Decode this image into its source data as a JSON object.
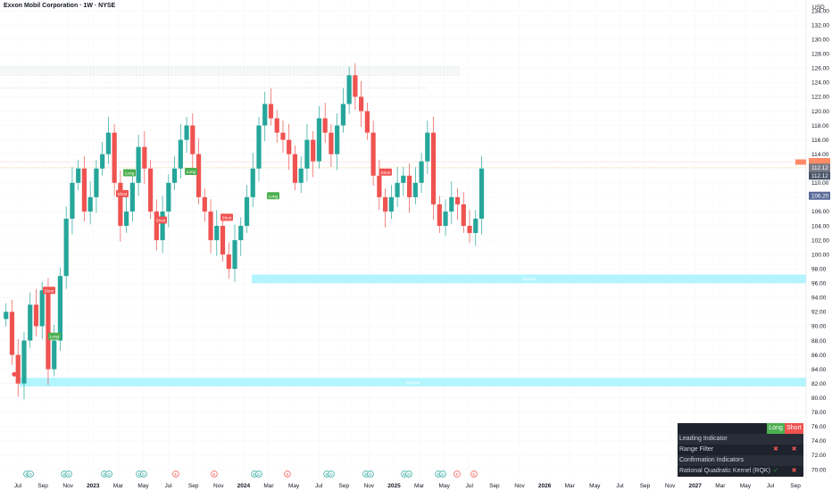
{
  "header": {
    "symbol_title": "Exxon Mobil Corporation · 1W · NYSE",
    "currency": "USD"
  },
  "colors": {
    "up": "#26a69a",
    "down": "#ef5350",
    "long_label": "#4caf50",
    "short_label": "#ef5350",
    "zone": "#b2f5ff",
    "zone_text": "#d5fbff",
    "price_label": "#787b86",
    "price_label_blue": "#5b6b99",
    "orange": "#ff8a65"
  },
  "chart_data": {
    "type": "candlestick",
    "y_axis": {
      "range": [
        69,
        135
      ],
      "ticks": [
        "70.00",
        "72.00",
        "74.00",
        "76.00",
        "78.00",
        "80.00",
        "82.00",
        "84.00",
        "86.00",
        "88.00",
        "90.00",
        "92.00",
        "94.00",
        "96.00",
        "98.00",
        "100.00",
        "102.00",
        "104.00",
        "106.00",
        "108.00",
        "110.00",
        "112.00",
        "114.00",
        "116.00",
        "118.00",
        "120.00",
        "122.00",
        "124.00",
        "126.00",
        "128.00",
        "130.00",
        "132.00",
        "134.00"
      ]
    },
    "x_axis": {
      "labels": [
        "Jul",
        "Sep",
        "Nov",
        "2023",
        "Mar",
        "May",
        "Jul",
        "Sep",
        "Nov",
        "2024",
        "Mar",
        "May",
        "Jul",
        "Sep",
        "Nov",
        "2025",
        "Mar",
        "May",
        "Jul",
        "Sep",
        "Nov",
        "2026",
        "Mar",
        "May",
        "Jul",
        "Sep",
        "Nov",
        "2027",
        "Mar",
        "May",
        "Jul",
        "Sep"
      ],
      "bold": [
        "2023",
        "2024",
        "2025",
        "2026",
        "2027"
      ]
    },
    "approx_close_path": [
      [
        2022.48,
        92
      ],
      [
        2022.52,
        86
      ],
      [
        2022.56,
        82
      ],
      [
        2022.6,
        88
      ],
      [
        2022.64,
        93
      ],
      [
        2022.68,
        90
      ],
      [
        2022.72,
        95
      ],
      [
        2022.76,
        84
      ],
      [
        2022.8,
        88
      ],
      [
        2022.84,
        97
      ],
      [
        2022.88,
        105
      ],
      [
        2022.92,
        110
      ],
      [
        2022.96,
        112
      ],
      [
        2023.0,
        106
      ],
      [
        2023.04,
        108
      ],
      [
        2023.08,
        112
      ],
      [
        2023.12,
        114
      ],
      [
        2023.16,
        117
      ],
      [
        2023.2,
        110
      ],
      [
        2023.24,
        104
      ],
      [
        2023.28,
        106
      ],
      [
        2023.32,
        110
      ],
      [
        2023.36,
        115
      ],
      [
        2023.4,
        112
      ],
      [
        2023.44,
        106
      ],
      [
        2023.48,
        102
      ],
      [
        2023.52,
        106
      ],
      [
        2023.56,
        110
      ],
      [
        2023.6,
        112
      ],
      [
        2023.64,
        116
      ],
      [
        2023.68,
        118
      ],
      [
        2023.72,
        114
      ],
      [
        2023.76,
        108
      ],
      [
        2023.8,
        106
      ],
      [
        2023.84,
        102
      ],
      [
        2023.88,
        104
      ],
      [
        2023.92,
        100
      ],
      [
        2023.96,
        98
      ],
      [
        2024.0,
        102
      ],
      [
        2024.04,
        104
      ],
      [
        2024.08,
        108
      ],
      [
        2024.12,
        112
      ],
      [
        2024.16,
        118
      ],
      [
        2024.2,
        121
      ],
      [
        2024.24,
        119
      ],
      [
        2024.28,
        117
      ],
      [
        2024.32,
        116
      ],
      [
        2024.36,
        114
      ],
      [
        2024.4,
        110
      ],
      [
        2024.44,
        112
      ],
      [
        2024.48,
        116
      ],
      [
        2024.52,
        113
      ],
      [
        2024.56,
        119
      ],
      [
        2024.6,
        117
      ],
      [
        2024.64,
        114
      ],
      [
        2024.68,
        118
      ],
      [
        2024.72,
        121
      ],
      [
        2024.76,
        125
      ],
      [
        2024.8,
        122
      ],
      [
        2024.84,
        120
      ],
      [
        2024.88,
        117
      ],
      [
        2024.92,
        111
      ],
      [
        2024.96,
        108
      ],
      [
        2025.0,
        106
      ],
      [
        2025.04,
        108
      ],
      [
        2025.08,
        110
      ],
      [
        2025.12,
        111
      ],
      [
        2025.16,
        108
      ],
      [
        2025.2,
        110
      ],
      [
        2025.24,
        113
      ],
      [
        2025.28,
        117
      ],
      [
        2025.32,
        107
      ],
      [
        2025.36,
        104
      ],
      [
        2025.4,
        106
      ],
      [
        2025.44,
        108
      ],
      [
        2025.48,
        107
      ],
      [
        2025.52,
        104
      ],
      [
        2025.56,
        103
      ],
      [
        2025.6,
        105
      ],
      [
        2025.64,
        112
      ]
    ],
    "current_price": "112.12",
    "price_labels": [
      "112.12",
      "112.12",
      "106.20"
    ],
    "zones": [
      {
        "label": "Support",
        "from": 96.0,
        "to": 97.2
      },
      {
        "label": "Support",
        "from": 81.6,
        "to": 82.8
      }
    ],
    "signals": [
      {
        "text": "Short",
        "type": "short"
      },
      {
        "text": "Long",
        "type": "long"
      },
      {
        "text": "Short",
        "type": "short"
      },
      {
        "text": "Long",
        "type": "long"
      },
      {
        "text": "Short",
        "type": "short"
      },
      {
        "text": "Long",
        "type": "long"
      },
      {
        "text": "Short",
        "type": "short"
      },
      {
        "text": "Long",
        "type": "long"
      },
      {
        "text": "Short",
        "type": "short"
      }
    ],
    "events": [
      "E",
      "D",
      "D",
      "D",
      "D",
      "D",
      "E",
      "E",
      "D",
      "E",
      "D",
      "D",
      "D",
      "D",
      "D",
      "E",
      "E"
    ]
  },
  "panel": {
    "header_long": "Long",
    "header_short": "Short",
    "rows": [
      {
        "label": "Leading Indicator",
        "long": "",
        "short": ""
      },
      {
        "label": "Range Filter",
        "long": "✖",
        "short": "✖"
      },
      {
        "label": "Confirmation Indicators",
        "long": "",
        "short": ""
      },
      {
        "label": "Rational Quadratic Kernel (RQK)",
        "long": "✔",
        "short": "✖"
      }
    ]
  }
}
